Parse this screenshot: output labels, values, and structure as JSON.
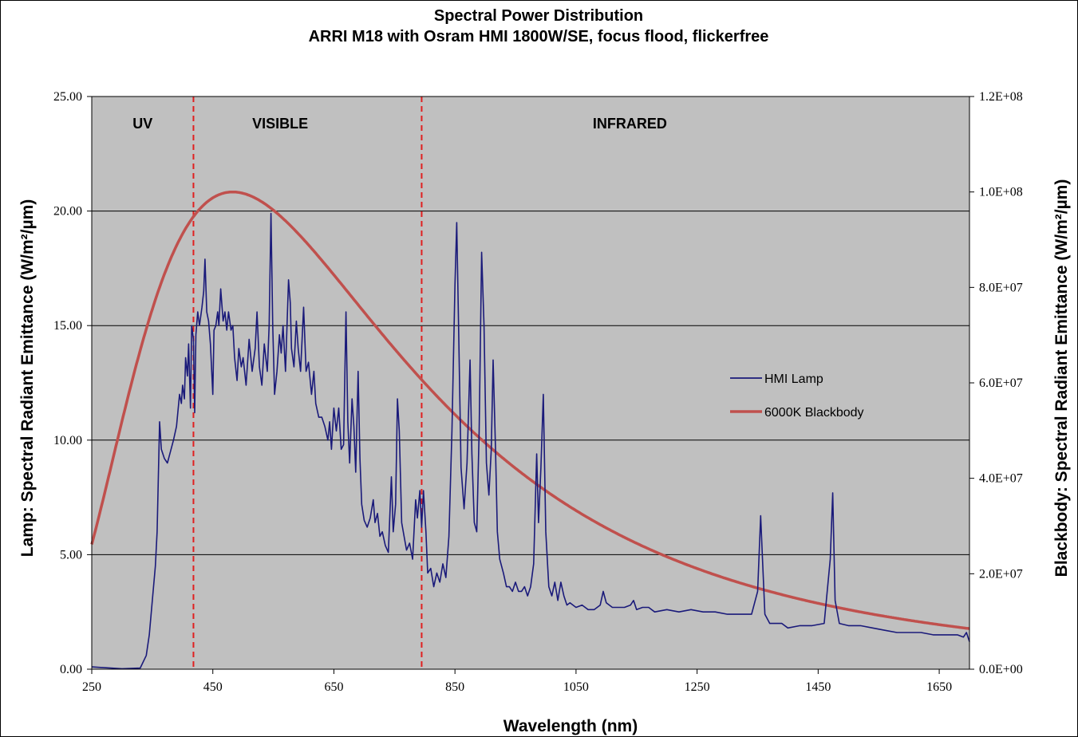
{
  "chart_data": {
    "type": "line",
    "title": "Spectral Power Distribution",
    "subtitle": "ARRI M18 with Osram HMI 1800W/SE, focus flood, flickerfree",
    "xlabel": "Wavelength (nm)",
    "ylabel_left": "Lamp:  Spectral Radiant Emittance  (W/m²/µm)",
    "ylabel_right": "Blackbody:  Spectral Radiant Emittance  (W/m²/µm)",
    "xlim": [
      250,
      1700
    ],
    "ylim_left": [
      0,
      25
    ],
    "ylim_right": [
      0,
      120000000
    ],
    "x_ticks": [
      "250",
      "450",
      "650",
      "850",
      "1050",
      "1250",
      "1450",
      "1650"
    ],
    "y_left_ticks": [
      "0.00",
      "5.00",
      "10.00",
      "15.00",
      "20.00",
      "25.00"
    ],
    "y_right_ticks": [
      "0.0E+00",
      "2.0E+07",
      "4.0E+07",
      "6.0E+07",
      "8.0E+07",
      "1.0E+08",
      "1.2E+08"
    ],
    "grid": true,
    "regions": [
      {
        "label": "UV"
      },
      {
        "label": "VISIBLE"
      },
      {
        "label": "INFRARED"
      }
    ],
    "region_boundaries_nm": [
      418,
      795
    ],
    "legend_position": "right",
    "series": [
      {
        "name": "HMI Lamp",
        "axis": "left",
        "color": "#1a1a7a",
        "points": [
          [
            250,
            0.1
          ],
          [
            300,
            0.02
          ],
          [
            330,
            0.05
          ],
          [
            340,
            0.6
          ],
          [
            345,
            1.5
          ],
          [
            350,
            3.0
          ],
          [
            355,
            4.5
          ],
          [
            358,
            6.0
          ],
          [
            362,
            10.8
          ],
          [
            365,
            9.6
          ],
          [
            370,
            9.2
          ],
          [
            375,
            9.0
          ],
          [
            380,
            9.5
          ],
          [
            385,
            10.0
          ],
          [
            390,
            10.6
          ],
          [
            395,
            12.0
          ],
          [
            398,
            11.6
          ],
          [
            400,
            12.4
          ],
          [
            403,
            11.8
          ],
          [
            405,
            13.6
          ],
          [
            408,
            12.8
          ],
          [
            410,
            14.2
          ],
          [
            413,
            11.4
          ],
          [
            415,
            15.0
          ],
          [
            418,
            14.4
          ],
          [
            420,
            11.2
          ],
          [
            422,
            14.6
          ],
          [
            425,
            15.6
          ],
          [
            428,
            15.0
          ],
          [
            432,
            15.8
          ],
          [
            435,
            16.5
          ],
          [
            437,
            17.9
          ],
          [
            440,
            15.6
          ],
          [
            443,
            15.2
          ],
          [
            446,
            14.2
          ],
          [
            450,
            12.0
          ],
          [
            452,
            14.8
          ],
          [
            455,
            15.0
          ],
          [
            458,
            15.6
          ],
          [
            460,
            15.0
          ],
          [
            463,
            16.6
          ],
          [
            467,
            15.2
          ],
          [
            470,
            15.6
          ],
          [
            473,
            14.8
          ],
          [
            476,
            15.6
          ],
          [
            480,
            14.8
          ],
          [
            483,
            15.0
          ],
          [
            486,
            13.6
          ],
          [
            490,
            12.6
          ],
          [
            493,
            14.0
          ],
          [
            497,
            13.2
          ],
          [
            500,
            13.6
          ],
          [
            505,
            12.4
          ],
          [
            510,
            14.4
          ],
          [
            515,
            13.0
          ],
          [
            520,
            14.0
          ],
          [
            523,
            15.6
          ],
          [
            527,
            13.2
          ],
          [
            531,
            12.4
          ],
          [
            535,
            14.2
          ],
          [
            540,
            13.0
          ],
          [
            543,
            15.0
          ],
          [
            546,
            19.9
          ],
          [
            549,
            15.0
          ],
          [
            552,
            12.0
          ],
          [
            556,
            13.0
          ],
          [
            560,
            14.6
          ],
          [
            563,
            13.8
          ],
          [
            566,
            15.0
          ],
          [
            570,
            13.0
          ],
          [
            575,
            17.0
          ],
          [
            578,
            16.0
          ],
          [
            580,
            14.0
          ],
          [
            584,
            13.2
          ],
          [
            588,
            15.2
          ],
          [
            591,
            14.0
          ],
          [
            595,
            13.0
          ],
          [
            600,
            15.8
          ],
          [
            604,
            13.0
          ],
          [
            608,
            13.4
          ],
          [
            613,
            12.0
          ],
          [
            617,
            13.0
          ],
          [
            620,
            11.6
          ],
          [
            625,
            11.0
          ],
          [
            630,
            11.0
          ],
          [
            635,
            10.6
          ],
          [
            640,
            10.0
          ],
          [
            643,
            10.8
          ],
          [
            646,
            9.6
          ],
          [
            650,
            11.4
          ],
          [
            654,
            10.4
          ],
          [
            658,
            11.4
          ],
          [
            662,
            9.6
          ],
          [
            666,
            9.8
          ],
          [
            670,
            15.6
          ],
          [
            673,
            10.8
          ],
          [
            676,
            9.0
          ],
          [
            680,
            11.8
          ],
          [
            683,
            10.6
          ],
          [
            686,
            8.6
          ],
          [
            690,
            13.0
          ],
          [
            693,
            9.2
          ],
          [
            696,
            7.2
          ],
          [
            700,
            6.5
          ],
          [
            705,
            6.2
          ],
          [
            710,
            6.6
          ],
          [
            715,
            7.4
          ],
          [
            718,
            6.4
          ],
          [
            722,
            6.8
          ],
          [
            726,
            5.8
          ],
          [
            730,
            6.0
          ],
          [
            735,
            5.4
          ],
          [
            740,
            5.1
          ],
          [
            745,
            8.4
          ],
          [
            748,
            6.0
          ],
          [
            752,
            7.2
          ],
          [
            755,
            11.8
          ],
          [
            758,
            10.4
          ],
          [
            762,
            6.4
          ],
          [
            766,
            5.8
          ],
          [
            770,
            5.2
          ],
          [
            775,
            5.5
          ],
          [
            780,
            4.8
          ],
          [
            785,
            7.4
          ],
          [
            788,
            6.6
          ],
          [
            792,
            7.8
          ],
          [
            795,
            6.2
          ],
          [
            798,
            7.8
          ],
          [
            802,
            6.0
          ],
          [
            805,
            4.2
          ],
          [
            810,
            4.4
          ],
          [
            815,
            3.6
          ],
          [
            820,
            4.2
          ],
          [
            825,
            3.8
          ],
          [
            830,
            4.6
          ],
          [
            835,
            4.0
          ],
          [
            840,
            5.8
          ],
          [
            845,
            10.4
          ],
          [
            850,
            16.8
          ],
          [
            853,
            19.5
          ],
          [
            856,
            15.0
          ],
          [
            860,
            8.8
          ],
          [
            865,
            7.0
          ],
          [
            870,
            9.0
          ],
          [
            875,
            13.5
          ],
          [
            878,
            9.4
          ],
          [
            882,
            6.4
          ],
          [
            886,
            6.0
          ],
          [
            890,
            10.4
          ],
          [
            894,
            18.2
          ],
          [
            898,
            15.0
          ],
          [
            902,
            9.0
          ],
          [
            906,
            7.6
          ],
          [
            910,
            9.6
          ],
          [
            913,
            13.5
          ],
          [
            917,
            9.6
          ],
          [
            920,
            6.0
          ],
          [
            924,
            4.8
          ],
          [
            930,
            4.2
          ],
          [
            935,
            3.6
          ],
          [
            940,
            3.6
          ],
          [
            945,
            3.4
          ],
          [
            950,
            3.8
          ],
          [
            955,
            3.4
          ],
          [
            960,
            3.4
          ],
          [
            965,
            3.6
          ],
          [
            970,
            3.2
          ],
          [
            975,
            3.6
          ],
          [
            980,
            4.6
          ],
          [
            985,
            9.4
          ],
          [
            988,
            6.4
          ],
          [
            992,
            8.8
          ],
          [
            996,
            12.0
          ],
          [
            1000,
            6.0
          ],
          [
            1005,
            3.6
          ],
          [
            1010,
            3.2
          ],
          [
            1015,
            3.8
          ],
          [
            1020,
            3.0
          ],
          [
            1025,
            3.8
          ],
          [
            1030,
            3.2
          ],
          [
            1035,
            2.8
          ],
          [
            1040,
            2.9
          ],
          [
            1050,
            2.7
          ],
          [
            1060,
            2.8
          ],
          [
            1070,
            2.6
          ],
          [
            1080,
            2.6
          ],
          [
            1090,
            2.8
          ],
          [
            1095,
            3.4
          ],
          [
            1100,
            2.9
          ],
          [
            1110,
            2.7
          ],
          [
            1120,
            2.7
          ],
          [
            1130,
            2.7
          ],
          [
            1140,
            2.8
          ],
          [
            1145,
            3.0
          ],
          [
            1150,
            2.6
          ],
          [
            1160,
            2.7
          ],
          [
            1170,
            2.7
          ],
          [
            1180,
            2.5
          ],
          [
            1200,
            2.6
          ],
          [
            1220,
            2.5
          ],
          [
            1240,
            2.6
          ],
          [
            1260,
            2.5
          ],
          [
            1280,
            2.5
          ],
          [
            1300,
            2.4
          ],
          [
            1320,
            2.4
          ],
          [
            1340,
            2.4
          ],
          [
            1350,
            3.4
          ],
          [
            1355,
            6.7
          ],
          [
            1358,
            4.8
          ],
          [
            1362,
            2.4
          ],
          [
            1370,
            2.0
          ],
          [
            1380,
            2.0
          ],
          [
            1390,
            2.0
          ],
          [
            1400,
            1.8
          ],
          [
            1420,
            1.9
          ],
          [
            1440,
            1.9
          ],
          [
            1460,
            2.0
          ],
          [
            1470,
            4.8
          ],
          [
            1474,
            7.7
          ],
          [
            1478,
            3.0
          ],
          [
            1485,
            2.0
          ],
          [
            1500,
            1.9
          ],
          [
            1520,
            1.9
          ],
          [
            1540,
            1.8
          ],
          [
            1560,
            1.7
          ],
          [
            1580,
            1.6
          ],
          [
            1600,
            1.6
          ],
          [
            1620,
            1.6
          ],
          [
            1640,
            1.5
          ],
          [
            1660,
            1.5
          ],
          [
            1680,
            1.5
          ],
          [
            1690,
            1.4
          ],
          [
            1695,
            1.6
          ],
          [
            1700,
            1.2
          ]
        ]
      },
      {
        "name": "6000K Blackbody",
        "axis": "right",
        "color": "#c0504d",
        "temperature_k": 6000,
        "peak_value": 100000000
      }
    ]
  }
}
